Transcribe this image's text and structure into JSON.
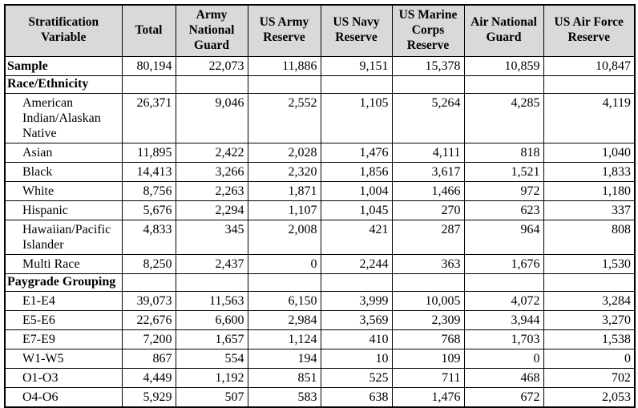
{
  "table": {
    "header_bg": "#d9d9d9",
    "border_color": "#000000",
    "columns": [
      "Stratification Variable",
      "Total",
      "Army National Guard",
      "US Army Reserve",
      "US Navy Reserve",
      "US Marine Corps Reserve",
      "Air National Guard",
      "US Air Force Reserve"
    ],
    "rows": [
      {
        "label": "Sample",
        "style": "bold",
        "values": [
          "80,194",
          "22,073",
          "11,886",
          "9,151",
          "15,378",
          "10,859",
          "10,847"
        ]
      },
      {
        "label": "Race/Ethnicity",
        "style": "section",
        "values": [
          "",
          "",
          "",
          "",
          "",
          "",
          ""
        ]
      },
      {
        "label": "American Indian/Alaskan Native",
        "style": "category",
        "values": [
          "26,371",
          "9,046",
          "2,552",
          "1,105",
          "5,264",
          "4,285",
          "4,119"
        ]
      },
      {
        "label": "Asian",
        "style": "category",
        "values": [
          "11,895",
          "2,422",
          "2,028",
          "1,476",
          "4,111",
          "818",
          "1,040"
        ]
      },
      {
        "label": "Black",
        "style": "category",
        "values": [
          "14,413",
          "3,266",
          "2,320",
          "1,856",
          "3,617",
          "1,521",
          "1,833"
        ]
      },
      {
        "label": "White",
        "style": "category",
        "values": [
          "8,756",
          "2,263",
          "1,871",
          "1,004",
          "1,466",
          "972",
          "1,180"
        ]
      },
      {
        "label": "Hispanic",
        "style": "category",
        "values": [
          "5,676",
          "2,294",
          "1,107",
          "1,045",
          "270",
          "623",
          "337"
        ]
      },
      {
        "label": "Hawaiian/Pacific Islander",
        "style": "category",
        "values": [
          "4,833",
          "345",
          "2,008",
          "421",
          "287",
          "964",
          "808"
        ]
      },
      {
        "label": "Multi Race",
        "style": "category",
        "values": [
          "8,250",
          "2,437",
          "0",
          "2,244",
          "363",
          "1,676",
          "1,530"
        ]
      },
      {
        "label": "Paygrade Grouping",
        "style": "section",
        "values": [
          "",
          "",
          "",
          "",
          "",
          "",
          ""
        ]
      },
      {
        "label": "E1-E4",
        "style": "category",
        "values": [
          "39,073",
          "11,563",
          "6,150",
          "3,999",
          "10,005",
          "4,072",
          "3,284"
        ]
      },
      {
        "label": "E5-E6",
        "style": "category",
        "values": [
          "22,676",
          "6,600",
          "2,984",
          "3,569",
          "2,309",
          "3,944",
          "3,270"
        ]
      },
      {
        "label": "E7-E9",
        "style": "category",
        "values": [
          "7,200",
          "1,657",
          "1,124",
          "410",
          "768",
          "1,703",
          "1,538"
        ]
      },
      {
        "label": "W1-W5",
        "style": "category",
        "values": [
          "867",
          "554",
          "194",
          "10",
          "109",
          "0",
          "0"
        ]
      },
      {
        "label": "O1-O3",
        "style": "category",
        "values": [
          "4,449",
          "1,192",
          "851",
          "525",
          "711",
          "468",
          "702"
        ]
      },
      {
        "label": "O4-O6",
        "style": "category",
        "values": [
          "5,929",
          "507",
          "583",
          "638",
          "1,476",
          "672",
          "2,053"
        ]
      }
    ]
  }
}
